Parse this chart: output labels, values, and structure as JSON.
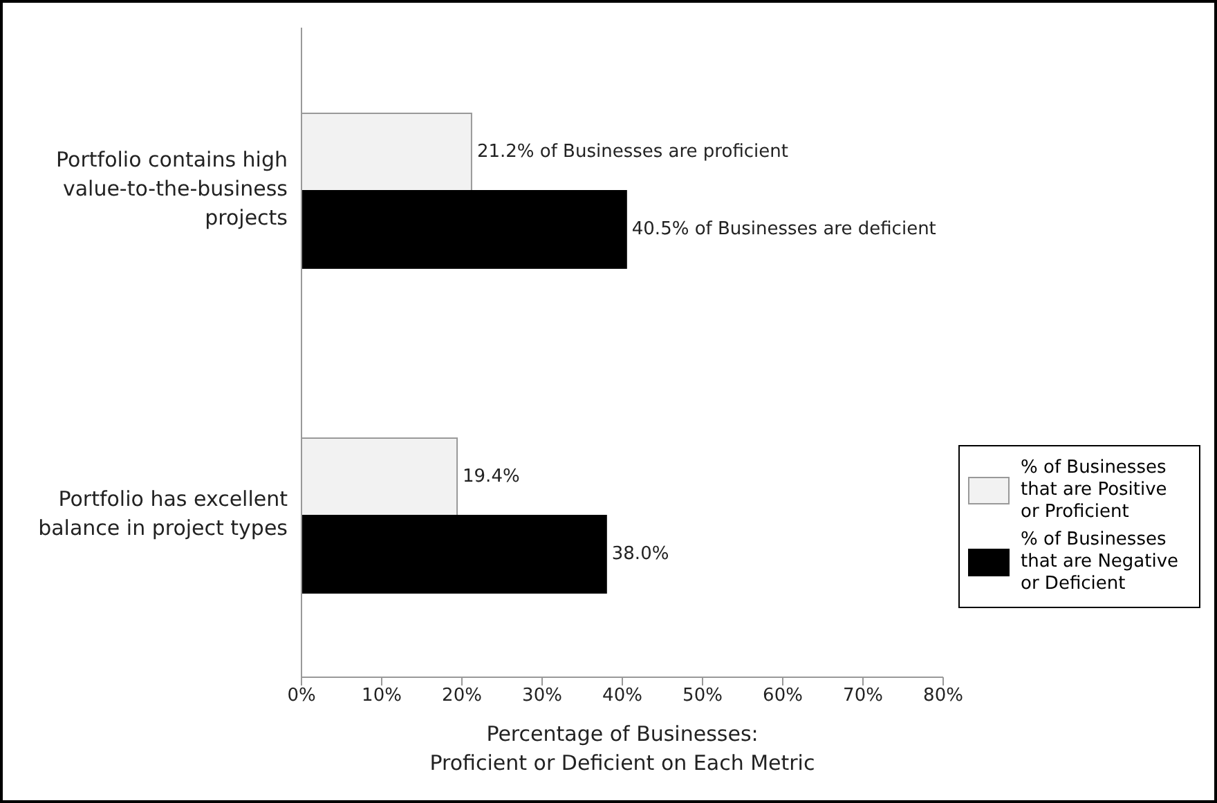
{
  "chart_data": {
    "type": "bar",
    "orientation": "horizontal",
    "categories": [
      "Portfolio contains high value-to-the-business projects",
      "Portfolio has excellent balance in project types"
    ],
    "series": [
      {
        "name": "% of Businesses that are Positive or Proficient",
        "color": "#f2f2f2",
        "values": [
          21.2,
          19.4
        ],
        "value_labels": [
          "21.2% of Businesses are proficient",
          "19.4%"
        ]
      },
      {
        "name": "% of Businesses that are Negative or Deficient",
        "color": "#000000",
        "values": [
          40.5,
          38.0
        ],
        "value_labels": [
          "40.5%  of Businesses are deficient",
          "38.0%"
        ]
      }
    ],
    "xlim": [
      0,
      80
    ],
    "xticks": [
      {
        "value": 0,
        "label": "0%"
      },
      {
        "value": 10,
        "label": "10%"
      },
      {
        "value": 20,
        "label": "20%"
      },
      {
        "value": 30,
        "label": "30%"
      },
      {
        "value": 40,
        "label": "40%"
      },
      {
        "value": 50,
        "label": "50%"
      },
      {
        "value": 60,
        "label": "60%"
      },
      {
        "value": 70,
        "label": "70%"
      },
      {
        "value": 80,
        "label": "80%"
      }
    ],
    "xlabel": "Percentage of Businesses:\nProficient or Deficient on Each Metric",
    "legend": "right"
  }
}
